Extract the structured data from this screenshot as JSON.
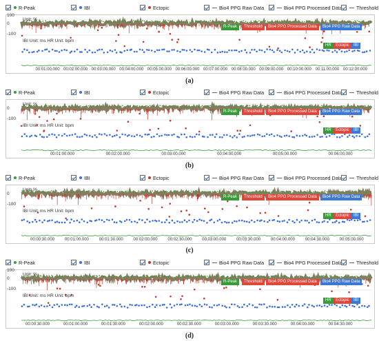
{
  "legend": {
    "r_peak": "R-Peak",
    "ibi": "IBI",
    "ectopic": "Ectopic",
    "raw": "Bio4 PPG Raw Data",
    "processed": "Bio4 PPG Processed Data",
    "threshold": "Threshold"
  },
  "colors": {
    "r_peak": "#3a9a3a",
    "ibi": "#3b6fe0",
    "ectopic": "#c23a2a",
    "raw_band": "#6b5a3a",
    "threshold_tag": "#e0463a",
    "rpeak_tag": "#3a9a3a",
    "processed_tag": "#e0463a",
    "raw_tag": "#3b78d8",
    "ibi_tag": "#3a9a3a",
    "ectopic_tag": "#e0463a",
    "ibi_tag2": "#3b78d8"
  },
  "axis": {
    "y_top": "0",
    "y_mid": "-100",
    "y_top_a": "100"
  },
  "tags": {
    "r_peak": "R-Peak",
    "threshold": "Threshold",
    "processed": "Bio4 PPG Processed Data",
    "raw": "Bio4 PPG Raw Data",
    "hr": "HR",
    "ectopic": "Ectopic",
    "ibi": "IBI"
  },
  "panels": [
    {
      "id": "a",
      "caption": "(a)",
      "unit_top": "Unit: %",
      "unit_bottom": "IBI Unit: ms HR Unit: bpm",
      "show_100": true,
      "ticks": [
        "00:01:00.000",
        "00:02:00.000",
        "00:03:00.000",
        "00:04:00.000",
        "00:05:00.000",
        "00:06:00.000",
        "00:07:00.000",
        "00:08:00.000",
        "00:09:00.000",
        "00:10:00.000",
        "00:11:00.000",
        "00:12:00.000"
      ]
    },
    {
      "id": "b",
      "caption": "(b)",
      "unit_top": "Unit: %",
      "unit_bottom": "IBI Unit: ms HR Unit: bpm",
      "show_100": false,
      "ticks": [
        "00:01:00.000",
        "00:02:00.000",
        "00:03:00.000",
        "00:04:00.000",
        "00:05:00.000",
        "00:06:00.000"
      ]
    },
    {
      "id": "c",
      "caption": "(c)",
      "unit_top": "Unit: %",
      "unit_bottom": "IBI Unit: ms HR Unit: bpm",
      "show_100": false,
      "ticks": [
        "00:00:30.000",
        "00:01:00.000",
        "00:01:30.000",
        "00:02:00.000",
        "00:02:30.000",
        "00:03:00.000",
        "00:03:30.000",
        "00:04:00.000",
        "00:04:30.000",
        "00:05:00.000"
      ]
    },
    {
      "id": "d",
      "caption": "(d)",
      "unit_top": "Unit: %",
      "unit_bottom": "IBI Unit: ms HR Unit: bpm",
      "show_100": true,
      "ticks": [
        "00:00:30.000",
        "00:01:00.000",
        "00:01:30.000",
        "00:02:00.000",
        "00:02:30.000",
        "00:03:00.000",
        "00:03:30.000",
        "00:04:00.000",
        "00:04:30.000"
      ]
    }
  ]
}
